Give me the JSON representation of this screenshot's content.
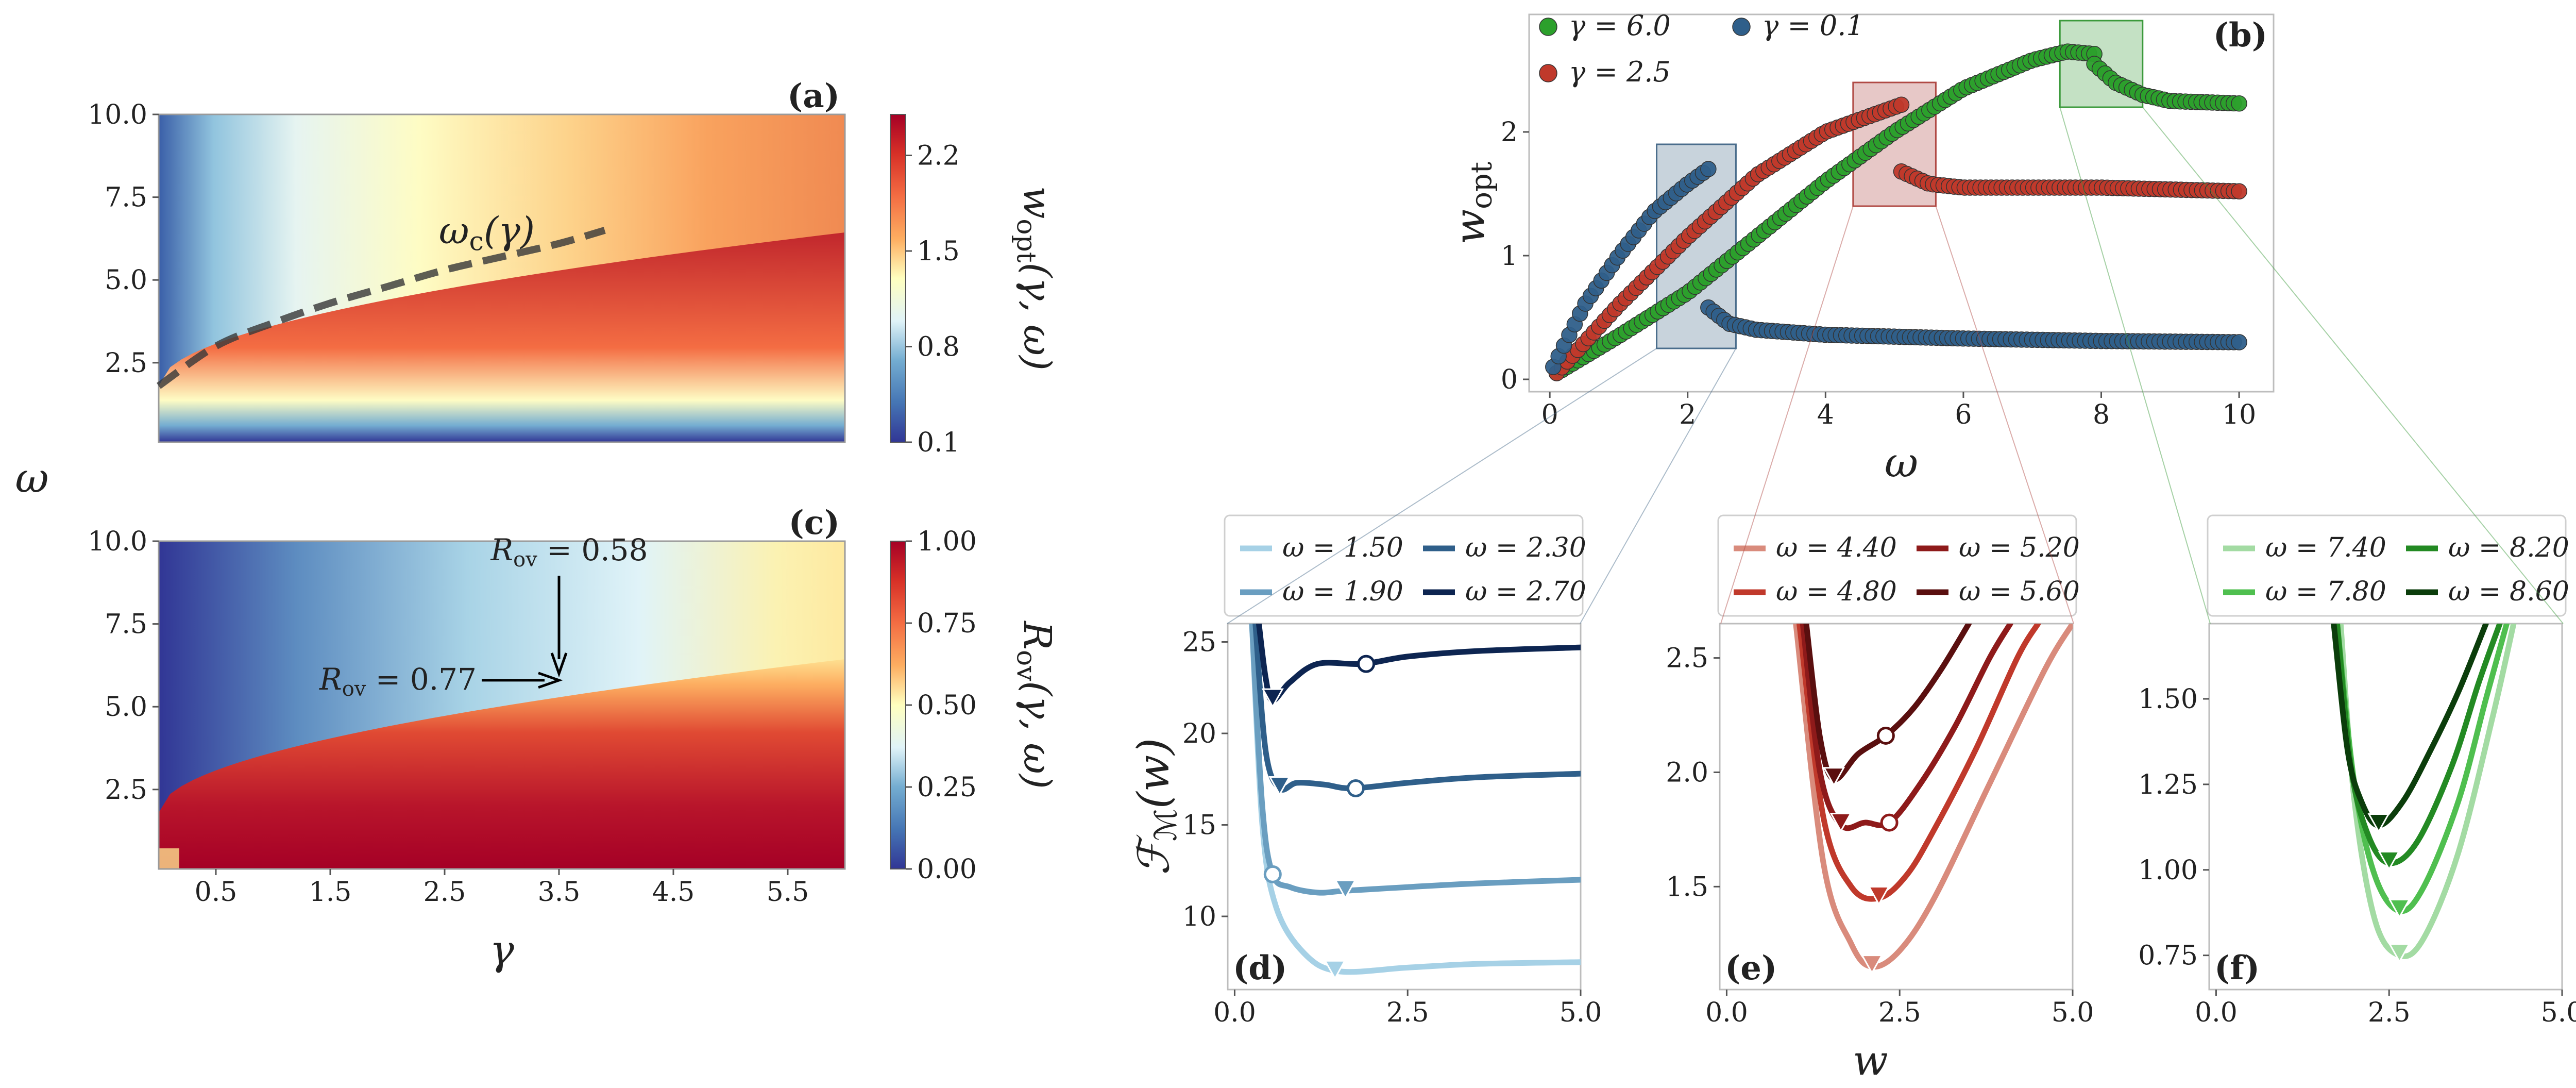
{
  "chart_data": [
    {
      "id": "a",
      "type": "heatmap",
      "panel_label": "(a)",
      "xlim": [
        0,
        6
      ],
      "ylim": [
        0.1,
        10
      ],
      "ylabel": "ω",
      "yticks": [
        2.5,
        5.0,
        7.5,
        10.0
      ],
      "ytick_labels": [
        "2.5",
        "5.0",
        "7.5",
        "10.0"
      ],
      "colorbar": {
        "label": "w_opt(γ, ω)",
        "range": [
          0.1,
          2.5
        ],
        "ticks": [
          0.1,
          0.8,
          1.5,
          2.2
        ],
        "tick_labels": [
          "0.1",
          "0.8",
          "1.5",
          "2.2"
        ]
      },
      "curve": {
        "name": "ω_c(γ)",
        "label": "ω_c(γ)",
        "gamma": [
          0,
          0.5,
          1,
          1.5,
          2,
          2.5,
          3,
          3.5,
          3.9
        ],
        "omega": [
          1.8,
          3.0,
          3.7,
          4.3,
          4.8,
          5.3,
          5.7,
          6.1,
          6.5
        ]
      }
    },
    {
      "id": "c",
      "type": "heatmap",
      "panel_label": "(c)",
      "xlim": [
        0,
        6
      ],
      "ylim": [
        0.1,
        10
      ],
      "xlabel": "γ",
      "xticks": [
        0.5,
        1.5,
        2.5,
        3.5,
        4.5,
        5.5
      ],
      "xtick_labels": [
        "0.5",
        "1.5",
        "2.5",
        "3.5",
        "4.5",
        "5.5"
      ],
      "yticks": [
        2.5,
        5.0,
        7.5,
        10.0
      ],
      "ytick_labels": [
        "2.5",
        "5.0",
        "7.5",
        "10.0"
      ],
      "colorbar": {
        "label": "R_ov(γ, ω)",
        "range": [
          0,
          1
        ],
        "ticks": [
          0,
          0.25,
          0.5,
          0.75,
          1.0
        ],
        "tick_labels": [
          "0.00",
          "0.25",
          "0.50",
          "0.75",
          "1.00"
        ]
      },
      "annotations": [
        {
          "text": "R_ov = 0.58",
          "value": 0.58,
          "gamma": 3.5,
          "omega": 6.0
        },
        {
          "text": "R_ov = 0.77",
          "value": 0.77,
          "gamma": 3.5,
          "omega": 5.8
        }
      ]
    },
    {
      "id": "b",
      "type": "scatter",
      "panel_label": "(b)",
      "xlabel": "ω",
      "ylabel": "w_opt",
      "xlim": [
        -0.3,
        10.5
      ],
      "ylim": [
        -0.1,
        2.95
      ],
      "xticks": [
        0,
        2,
        4,
        6,
        8,
        10
      ],
      "xtick_labels": [
        "0",
        "2",
        "4",
        "6",
        "8",
        "10"
      ],
      "yticks": [
        0,
        1,
        2
      ],
      "ytick_labels": [
        "0",
        "1",
        "2"
      ],
      "series": [
        {
          "name": "γ = 6.0",
          "color": "#2ca02c",
          "segments": [
            {
              "x": [
                0.1,
                1,
                2,
                3,
                4,
                5,
                6,
                7,
                7.5,
                7.9
              ],
              "y": [
                0.05,
                0.35,
                0.7,
                1.15,
                1.6,
                2.0,
                2.35,
                2.58,
                2.65,
                2.63
              ]
            },
            {
              "x": [
                7.9,
                8.2,
                8.6,
                9.0,
                10.0
              ],
              "y": [
                2.55,
                2.4,
                2.3,
                2.25,
                2.23
              ]
            }
          ]
        },
        {
          "name": "γ = 2.5",
          "color": "#c0392b",
          "segments": [
            {
              "x": [
                0.1,
                1,
                2,
                3,
                4,
                5.1
              ],
              "y": [
                0.05,
                0.6,
                1.15,
                1.65,
                2.0,
                2.22
              ]
            },
            {
              "x": [
                5.1,
                5.5,
                6,
                8,
                10
              ],
              "y": [
                1.68,
                1.58,
                1.55,
                1.55,
                1.52
              ]
            }
          ]
        },
        {
          "name": "γ = 0.1",
          "color": "#2f5f8a",
          "segments": [
            {
              "x": [
                0.05,
                0.5,
                1,
                1.5,
                2.0,
                2.3
              ],
              "y": [
                0.1,
                0.6,
                1.0,
                1.35,
                1.58,
                1.7
              ]
            },
            {
              "x": [
                2.3,
                2.6,
                3,
                4,
                6,
                8,
                10
              ],
              "y": [
                0.58,
                0.45,
                0.4,
                0.36,
                0.33,
                0.31,
                0.3
              ]
            }
          ]
        }
      ],
      "zoom_boxes": [
        {
          "x": [
            1.55,
            2.7
          ],
          "y": [
            0.25,
            1.9
          ],
          "color": "#4a6d8c",
          "target": "d"
        },
        {
          "x": [
            4.4,
            5.6
          ],
          "y": [
            1.4,
            2.4
          ],
          "color": "#b04a45",
          "target": "e"
        },
        {
          "x": [
            7.4,
            8.6
          ],
          "y": [
            2.2,
            2.9
          ],
          "color": "#3c9a3c",
          "target": "f"
        }
      ]
    },
    {
      "id": "d",
      "type": "line",
      "panel_label": "(d)",
      "ylabel": "F_M(w)",
      "xlim": [
        -0.1,
        5.0
      ],
      "ylim": [
        6,
        26
      ],
      "xticks": [
        0,
        2.5,
        5
      ],
      "xtick_labels": [
        "0.0",
        "2.5",
        "5.0"
      ],
      "yticks": [
        10,
        15,
        20,
        25
      ],
      "ytick_labels": [
        "10",
        "15",
        "20",
        "25"
      ],
      "series": [
        {
          "name": "ω = 1.50",
          "color": "#a6d1e6",
          "x": [
            0.25,
            0.4,
            0.6,
            1.0,
            1.5,
            2.5,
            3.5,
            5.0
          ],
          "y": [
            26,
            15,
            10.5,
            8.0,
            7.0,
            7.2,
            7.4,
            7.5
          ],
          "min_global": [
            1.45,
            6.95
          ],
          "min_local": null
        },
        {
          "name": "ω = 1.90",
          "color": "#6a9ec0",
          "x": [
            0.25,
            0.4,
            0.55,
            0.8,
            1.2,
            1.6,
            2.5,
            3.5,
            5.0
          ],
          "y": [
            26,
            16,
            12.3,
            11.6,
            11.3,
            11.4,
            11.6,
            11.8,
            12.0
          ],
          "min_global": [
            1.6,
            11.35
          ],
          "min_local": [
            0.55,
            12.3
          ]
        },
        {
          "name": "ω = 2.30",
          "color": "#2f5f8a",
          "x": [
            0.3,
            0.45,
            0.65,
            0.9,
            1.3,
            1.7,
            2.5,
            3.5,
            5.0
          ],
          "y": [
            26,
            19,
            17.0,
            17.3,
            17.2,
            17.0,
            17.3,
            17.6,
            17.8
          ],
          "min_global": [
            0.65,
            17.0
          ],
          "min_local": [
            1.75,
            17.0
          ]
        },
        {
          "name": "ω = 2.70",
          "color": "#0d2551",
          "x": [
            0.35,
            0.45,
            0.55,
            0.8,
            1.2,
            1.85,
            2.5,
            3.5,
            5.0
          ],
          "y": [
            26,
            23,
            21.8,
            22.8,
            23.8,
            23.8,
            24.2,
            24.5,
            24.7
          ],
          "min_global": [
            0.55,
            21.8
          ],
          "min_local": [
            1.9,
            23.8
          ]
        }
      ]
    },
    {
      "id": "e",
      "type": "line",
      "panel_label": "(e)",
      "xlabel": "w",
      "xlim": [
        -0.1,
        5.0
      ],
      "ylim": [
        1.05,
        2.65
      ],
      "xticks": [
        0,
        2.5,
        5
      ],
      "xtick_labels": [
        "0.0",
        "2.5",
        "5.0"
      ],
      "yticks": [
        1.5,
        2.0,
        2.5
      ],
      "ytick_labels": [
        "1.5",
        "2.0",
        "2.5"
      ],
      "series": [
        {
          "name": "ω = 4.40",
          "color": "#d98b7c",
          "x": [
            1.0,
            1.4,
            1.8,
            2.1,
            2.5,
            3.0,
            3.8,
            4.6,
            5.0
          ],
          "y": [
            2.65,
            1.6,
            1.25,
            1.15,
            1.22,
            1.45,
            1.95,
            2.45,
            2.65
          ],
          "min_global": [
            2.1,
            1.15
          ],
          "min_local": null
        },
        {
          "name": "ω = 4.80",
          "color": "#c0392b",
          "x": [
            1.05,
            1.4,
            1.8,
            2.2,
            2.6,
            3.0,
            3.6,
            4.2,
            4.5
          ],
          "y": [
            2.65,
            1.8,
            1.5,
            1.45,
            1.55,
            1.75,
            2.1,
            2.5,
            2.65
          ],
          "min_global": [
            2.2,
            1.45
          ],
          "min_local": null
        },
        {
          "name": "ω = 5.20",
          "color": "#8e1a1a",
          "x": [
            1.1,
            1.35,
            1.65,
            2.0,
            2.35,
            2.8,
            3.3,
            3.8,
            4.1
          ],
          "y": [
            2.65,
            2.0,
            1.77,
            1.78,
            1.78,
            1.95,
            2.2,
            2.5,
            2.65
          ],
          "min_global": [
            1.65,
            1.77
          ],
          "min_local": [
            2.35,
            1.78
          ]
        },
        {
          "name": "ω = 5.60",
          "color": "#5a0f0f",
          "x": [
            1.15,
            1.35,
            1.55,
            1.9,
            2.3,
            2.7,
            3.1,
            3.5
          ],
          "y": [
            2.65,
            2.15,
            1.97,
            2.08,
            2.16,
            2.28,
            2.45,
            2.65
          ],
          "min_global": [
            1.55,
            1.97
          ],
          "min_local": [
            2.3,
            2.16
          ]
        }
      ]
    },
    {
      "id": "f",
      "type": "line",
      "panel_label": "(f)",
      "xlim": [
        -0.1,
        5.0
      ],
      "ylim": [
        0.65,
        1.72
      ],
      "xticks": [
        0,
        2.5,
        5
      ],
      "xtick_labels": [
        "0.0",
        "2.5",
        "5.0"
      ],
      "yticks": [
        0.75,
        1.0,
        1.25,
        1.5
      ],
      "ytick_labels": [
        "0.75",
        "1.00",
        "1.25",
        "1.50"
      ],
      "series": [
        {
          "name": "ω = 7.40",
          "color": "#a3dba3",
          "x": [
            1.8,
            2.0,
            2.3,
            2.65,
            3.0,
            3.5,
            4.0,
            4.3
          ],
          "y": [
            1.72,
            1.2,
            0.85,
            0.75,
            0.8,
            1.05,
            1.45,
            1.72
          ],
          "min_global": [
            2.65,
            0.75
          ],
          "min_local": null
        },
        {
          "name": "ω = 7.80",
          "color": "#4fbf4f",
          "x": [
            1.75,
            2.0,
            2.3,
            2.65,
            3.0,
            3.5,
            3.9,
            4.2
          ],
          "y": [
            1.72,
            1.25,
            0.98,
            0.88,
            0.95,
            1.2,
            1.5,
            1.72
          ],
          "min_global": [
            2.65,
            0.88
          ],
          "min_local": null
        },
        {
          "name": "ω = 8.20",
          "color": "#238a23",
          "x": [
            1.75,
            1.95,
            2.2,
            2.5,
            2.9,
            3.4,
            3.8,
            4.1
          ],
          "y": [
            1.72,
            1.3,
            1.1,
            1.02,
            1.08,
            1.3,
            1.55,
            1.72
          ],
          "min_global": [
            2.5,
            1.02
          ],
          "min_local": null
        },
        {
          "name": "ω = 8.60",
          "color": "#0b3d0b",
          "x": [
            1.7,
            1.9,
            2.1,
            2.35,
            2.7,
            3.1,
            3.5,
            3.9
          ],
          "y": [
            1.72,
            1.35,
            1.2,
            1.13,
            1.2,
            1.35,
            1.52,
            1.72
          ],
          "min_global": [
            2.35,
            1.13
          ],
          "min_local": null
        }
      ]
    }
  ]
}
